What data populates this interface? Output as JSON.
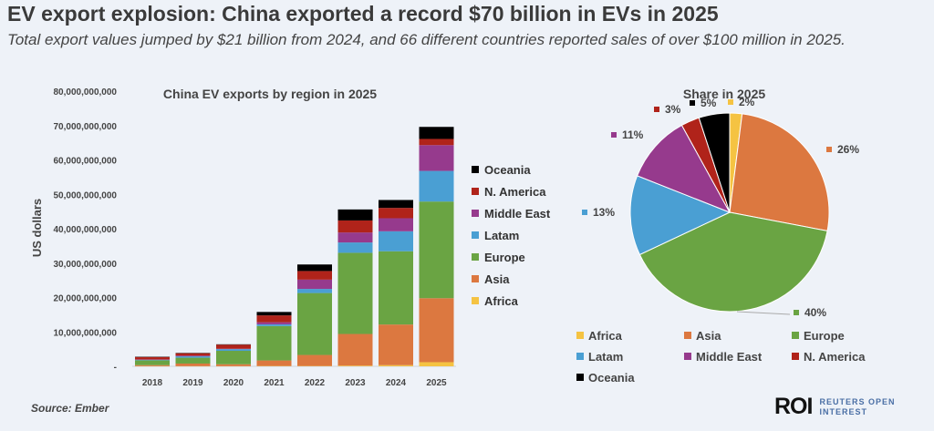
{
  "header": {
    "title": "EV export explosion: China exported a record $70 billion in EVs in 2025",
    "subtitle": "Total export values jumped by $21 billion from 2024, and 66 different countries reported sales of over $100 million in 2025."
  },
  "source": "Source:  Ember",
  "logo": {
    "mark": "ROI",
    "line1": "REUTERS OPEN",
    "line2": "INTEREST"
  },
  "colors": {
    "Africa": "#f5c342",
    "Asia": "#dc7840",
    "Europe": "#6aa443",
    "Latam": "#4a9fd3",
    "Middle East": "#963a8d",
    "N. America": "#b0231a",
    "Oceania": "#000000"
  },
  "chart_data": [
    {
      "type": "bar",
      "stacked": true,
      "title": "China EV exports by region in 2025",
      "ylabel": "US dollars",
      "xlabel": "",
      "units": "billion USD",
      "ylim": [
        0,
        80
      ],
      "yticks": [
        "-",
        "10,000,000,000",
        "20,000,000,000",
        "30,000,000,000",
        "40,000,000,000",
        "50,000,000,000",
        "60,000,000,000",
        "70,000,000,000",
        "80,000,000,000"
      ],
      "categories": [
        "2018",
        "2019",
        "2020",
        "2021",
        "2022",
        "2023",
        "2024",
        "2025"
      ],
      "legend_position": "right",
      "series": [
        {
          "name": "Africa",
          "values": [
            0.05,
            0.05,
            0.05,
            0.1,
            0.1,
            0.2,
            0.35,
            1.2
          ]
        },
        {
          "name": "Asia",
          "values": [
            0.3,
            0.75,
            0.55,
            1.6,
            3.2,
            9.2,
            11.8,
            18.6
          ]
        },
        {
          "name": "Europe",
          "values": [
            1.4,
            1.7,
            3.9,
            10.0,
            18.0,
            23.6,
            21.3,
            28.1
          ]
        },
        {
          "name": "Latam",
          "values": [
            0.15,
            0.4,
            0.5,
            0.5,
            1.2,
            3.0,
            5.8,
            8.9
          ]
        },
        {
          "name": "Middle East",
          "values": [
            0.1,
            0.2,
            0.1,
            0.6,
            2.7,
            2.9,
            3.8,
            7.5
          ]
        },
        {
          "name": "N. America",
          "values": [
            0.7,
            0.7,
            1.2,
            2.0,
            2.5,
            3.5,
            3.0,
            1.8
          ]
        },
        {
          "name": "Oceania",
          "values": [
            0.1,
            0.1,
            0.1,
            1.0,
            1.9,
            3.2,
            2.3,
            3.5
          ]
        }
      ]
    },
    {
      "type": "pie",
      "title": "Share in 2025",
      "legend_position": "bottom",
      "slices": [
        {
          "name": "Africa",
          "value": 2,
          "label": "2%"
        },
        {
          "name": "Asia",
          "value": 26,
          "label": "26%"
        },
        {
          "name": "Europe",
          "value": 40,
          "label": "40%"
        },
        {
          "name": "Latam",
          "value": 13,
          "label": "13%"
        },
        {
          "name": "Middle East",
          "value": 11,
          "label": "11%"
        },
        {
          "name": "N. America",
          "value": 3,
          "label": "3%"
        },
        {
          "name": "Oceania",
          "value": 5,
          "label": "5%"
        }
      ]
    }
  ]
}
